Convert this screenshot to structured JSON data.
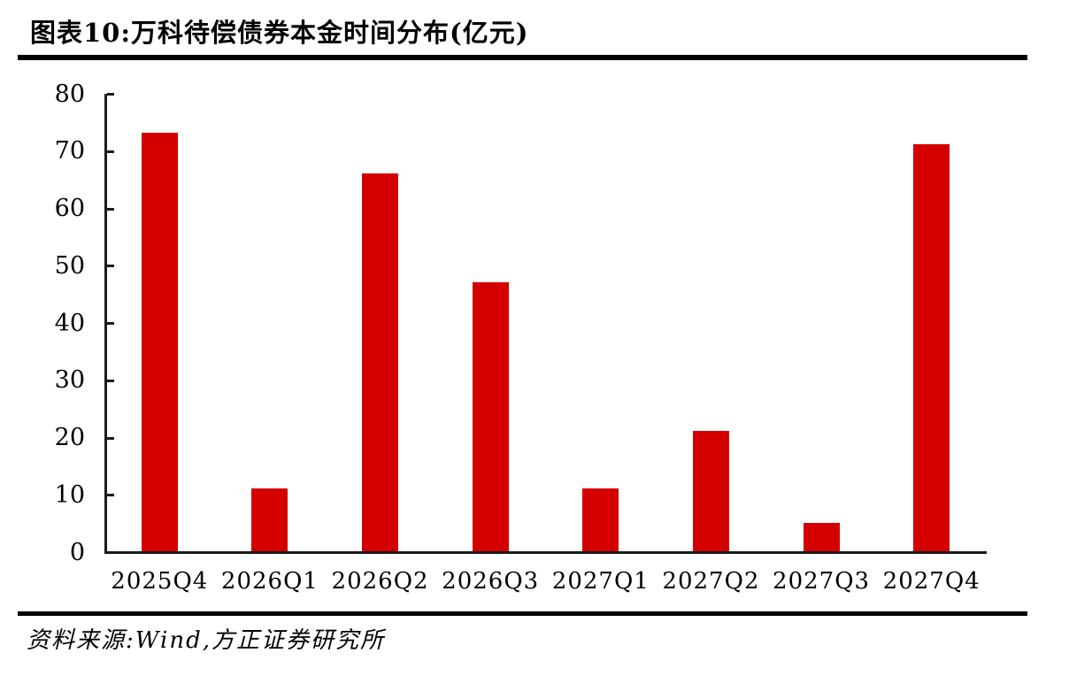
{
  "header": {
    "title": "图表10:万科待偿债券本金时间分布(亿元)"
  },
  "footer": {
    "source": "资料来源:Wind,方正证券研究所"
  },
  "chart_data": {
    "type": "bar",
    "title": "图表10:万科待偿债券本金时间分布(亿元)",
    "categories": [
      "2025Q4",
      "2026Q1",
      "2026Q2",
      "2026Q3",
      "2027Q1",
      "2027Q2",
      "2027Q3",
      "2027Q4"
    ],
    "values": [
      73,
      11,
      66,
      47,
      11,
      21,
      5,
      71
    ],
    "xlabel": "",
    "ylabel": "",
    "unit": "亿元",
    "ylim": [
      0,
      80
    ],
    "yticks": [
      0,
      10,
      20,
      30,
      40,
      50,
      60,
      70,
      80
    ],
    "bar_color": "#d40000",
    "axis_color": "#1a1a1a",
    "grid": false,
    "legend": "none"
  }
}
